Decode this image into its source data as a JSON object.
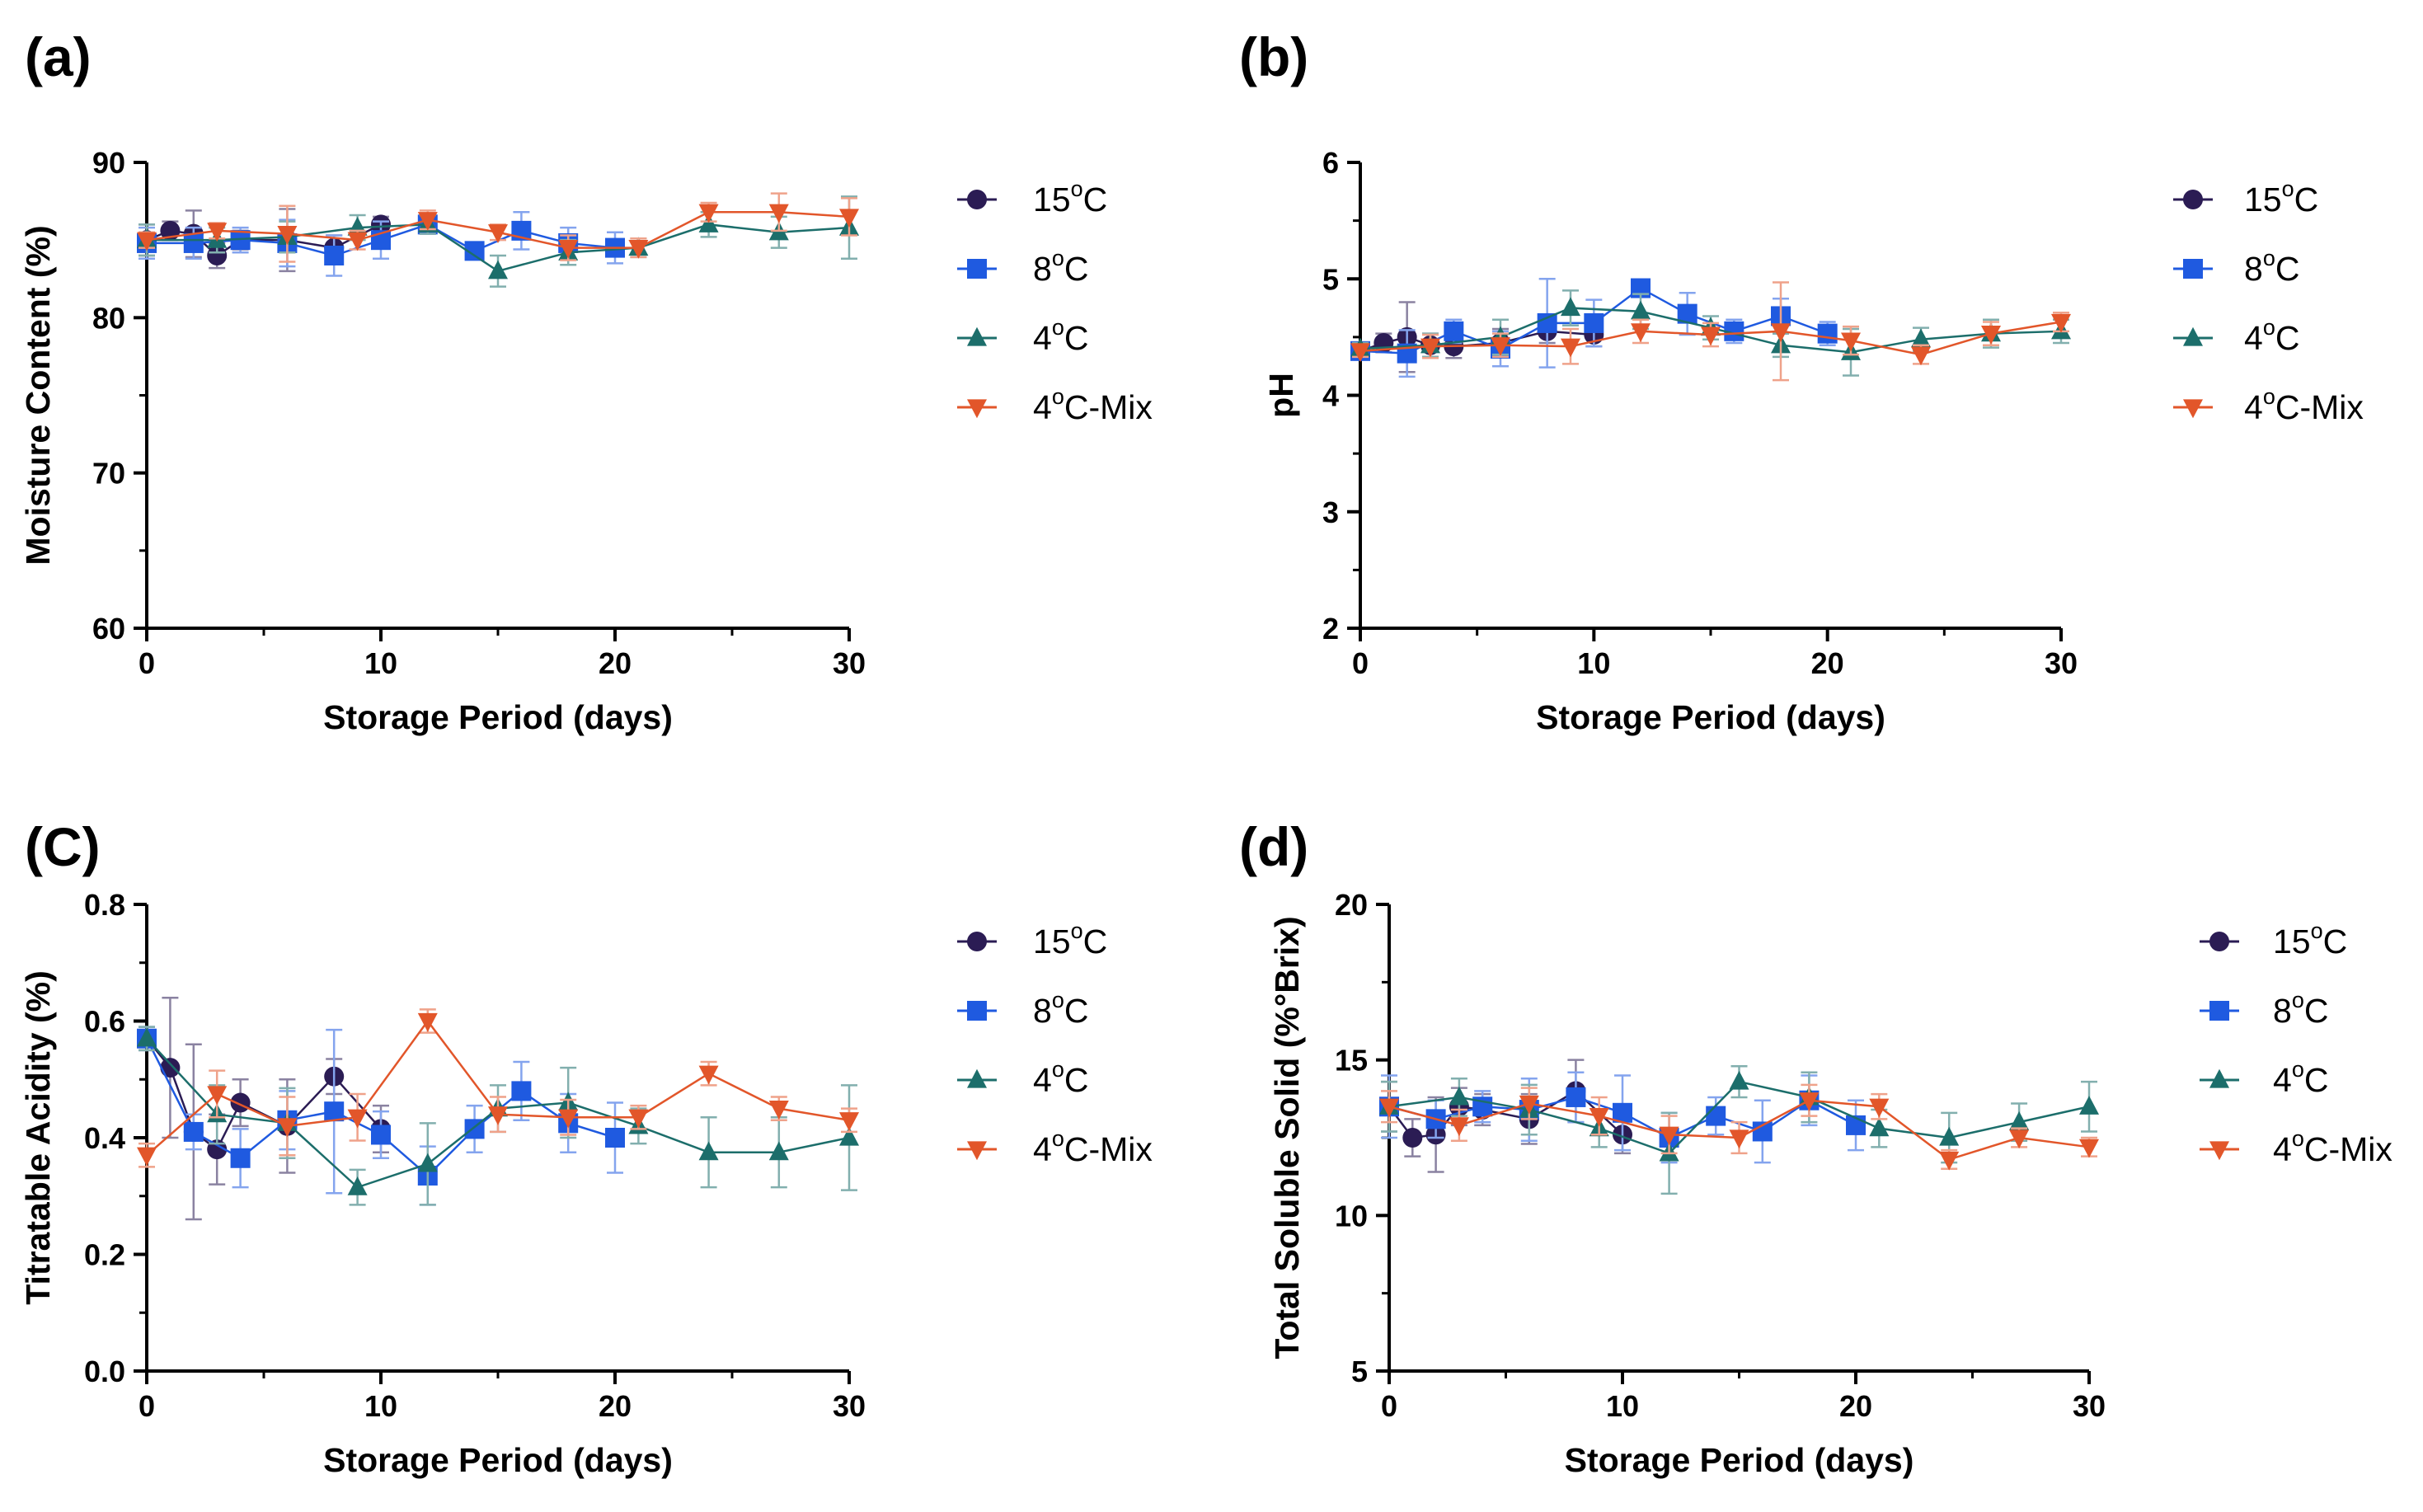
{
  "chart_data": [
    {
      "type": "line",
      "panel_label": "(a)",
      "xlabel": "Storage Period (days)",
      "ylabel": "Moisture Content (%)",
      "xlim": [
        0,
        30
      ],
      "ylim": [
        60,
        90
      ],
      "xticks": [
        "0",
        "10",
        "20",
        "30"
      ],
      "yticks": [
        "60",
        "70",
        "80",
        "90"
      ],
      "series": [
        {
          "name": "15°C",
          "label": "15",
          "suffix": "C",
          "sup": "o",
          "color": "#2b1c54",
          "marker": "circle",
          "x": [
            0,
            1,
            2,
            3,
            4,
            6,
            8,
            10
          ],
          "y": [
            85.0,
            85.6,
            85.4,
            84.0,
            85.0,
            85.0,
            84.5,
            86.0
          ],
          "err": [
            1.0,
            0.6,
            1.5,
            0.8,
            0.6,
            2.0,
            0.8,
            0.5
          ]
        },
        {
          "name": "8°C",
          "label": "8",
          "suffix": "C",
          "sup": "o",
          "color": "#1f5ae0",
          "marker": "square",
          "x": [
            0,
            2,
            4,
            6,
            8,
            10,
            12,
            14,
            16,
            18,
            20
          ],
          "y": [
            84.8,
            84.8,
            85.0,
            84.8,
            84.0,
            85.0,
            86.0,
            84.3,
            85.6,
            84.8,
            84.5
          ],
          "err": [
            1.0,
            1.0,
            0.8,
            1.5,
            1.3,
            1.2,
            0.6,
            0.5,
            1.2,
            1.0,
            1.0
          ]
        },
        {
          "name": "4°C",
          "label": "4",
          "suffix": "C",
          "sup": "o",
          "color": "#1c6e6b",
          "marker": "triangle",
          "x": [
            0,
            3,
            6,
            9,
            12,
            15,
            18,
            21,
            24,
            27,
            30
          ],
          "y": [
            85.0,
            85.0,
            85.2,
            85.8,
            86.0,
            83.0,
            84.2,
            84.5,
            86.0,
            85.5,
            85.8
          ],
          "err": [
            1.0,
            0.8,
            1.0,
            0.8,
            0.6,
            1.0,
            0.8,
            0.6,
            0.8,
            1.0,
            2.0
          ]
        },
        {
          "name": "4°C-Mix",
          "label": "4",
          "suffix": "C-Mix",
          "sup": "o",
          "color": "#e2562a",
          "marker": "triangle-down",
          "x": [
            0,
            3,
            6,
            9,
            12,
            15,
            18,
            21,
            24,
            27,
            30
          ],
          "y": [
            85.0,
            85.6,
            85.4,
            85.0,
            86.3,
            85.5,
            84.5,
            84.5,
            86.8,
            86.8,
            86.5
          ],
          "err": [
            0.5,
            0.5,
            1.8,
            0.6,
            0.6,
            0.5,
            0.8,
            0.6,
            0.6,
            1.2,
            1.2
          ]
        }
      ]
    },
    {
      "type": "line",
      "panel_label": "(b)",
      "xlabel": "Storage Period (days)",
      "ylabel": "pH",
      "xlim": [
        0,
        30
      ],
      "ylim": [
        2,
        6
      ],
      "xticks": [
        "0",
        "10",
        "20",
        "30"
      ],
      "yticks": [
        "2",
        "3",
        "4",
        "5",
        "6"
      ],
      "series": [
        {
          "name": "15°C",
          "label": "15",
          "suffix": "C",
          "sup": "o",
          "color": "#2b1c54",
          "marker": "circle",
          "x": [
            0,
            1,
            2,
            3,
            4,
            6,
            8,
            10
          ],
          "y": [
            4.38,
            4.45,
            4.5,
            4.43,
            4.42,
            4.45,
            4.55,
            4.52
          ],
          "err": [
            0.05,
            0.08,
            0.3,
            0.1,
            0.1,
            0.12,
            0.1,
            0.1
          ]
        },
        {
          "name": "8°C",
          "label": "8",
          "suffix": "C",
          "sup": "o",
          "color": "#1f5ae0",
          "marker": "square",
          "x": [
            0,
            2,
            4,
            6,
            8,
            10,
            12,
            14,
            16,
            18,
            20
          ],
          "y": [
            4.38,
            4.36,
            4.55,
            4.4,
            4.62,
            4.62,
            4.92,
            4.7,
            4.55,
            4.68,
            4.53
          ],
          "err": [
            0.05,
            0.2,
            0.1,
            0.15,
            0.38,
            0.2,
            0.05,
            0.18,
            0.1,
            0.15,
            0.1
          ]
        },
        {
          "name": "4°C",
          "label": "4",
          "suffix": "C",
          "sup": "o",
          "color": "#1c6e6b",
          "marker": "triangle",
          "x": [
            0,
            3,
            6,
            9,
            12,
            15,
            18,
            21,
            24,
            27,
            30
          ],
          "y": [
            4.4,
            4.43,
            4.5,
            4.75,
            4.72,
            4.58,
            4.43,
            4.37,
            4.48,
            4.53,
            4.55
          ],
          "err": [
            0.05,
            0.1,
            0.15,
            0.15,
            0.15,
            0.1,
            0.1,
            0.2,
            0.1,
            0.12,
            0.1
          ]
        },
        {
          "name": "4°C-Mix",
          "label": "4",
          "suffix": "C-Mix",
          "sup": "o",
          "color": "#e2562a",
          "marker": "triangle-down",
          "x": [
            0,
            3,
            6,
            9,
            12,
            15,
            18,
            21,
            24,
            27,
            30
          ],
          "y": [
            4.38,
            4.42,
            4.43,
            4.42,
            4.55,
            4.52,
            4.55,
            4.47,
            4.35,
            4.53,
            4.63
          ],
          "err": [
            0.05,
            0.1,
            0.1,
            0.15,
            0.1,
            0.1,
            0.42,
            0.12,
            0.08,
            0.1,
            0.08
          ]
        }
      ]
    },
    {
      "type": "line",
      "panel_label": "(C)",
      "xlabel": "Storage Period (days)",
      "ylabel": "Titratable Acidity (%)",
      "xlim": [
        0,
        30
      ],
      "ylim": [
        0.0,
        0.8
      ],
      "xticks": [
        "0",
        "10",
        "20",
        "30"
      ],
      "yticks": [
        "0.0",
        "0.2",
        "0.4",
        "0.6",
        "0.8"
      ],
      "series": [
        {
          "name": "15°C",
          "label": "15",
          "suffix": "C",
          "sup": "o",
          "color": "#2b1c54",
          "marker": "circle",
          "x": [
            0,
            1,
            2,
            3,
            4,
            6,
            8,
            10
          ],
          "y": [
            0.57,
            0.52,
            0.41,
            0.38,
            0.46,
            0.42,
            0.505,
            0.415
          ],
          "err": [
            0.02,
            0.12,
            0.15,
            0.06,
            0.04,
            0.08,
            0.03,
            0.04
          ]
        },
        {
          "name": "8°C",
          "label": "8",
          "suffix": "C",
          "sup": "o",
          "color": "#1f5ae0",
          "marker": "square",
          "x": [
            0,
            2,
            4,
            6,
            8,
            10,
            12,
            14,
            16,
            18,
            20
          ],
          "y": [
            0.57,
            0.41,
            0.365,
            0.43,
            0.445,
            0.405,
            0.335,
            0.415,
            0.48,
            0.425,
            0.4
          ],
          "err": [
            0.02,
            0.03,
            0.05,
            0.05,
            0.14,
            0.04,
            0.05,
            0.04,
            0.05,
            0.05,
            0.06
          ]
        },
        {
          "name": "4°C",
          "label": "4",
          "suffix": "C",
          "sup": "o",
          "color": "#1c6e6b",
          "marker": "triangle",
          "x": [
            0,
            3,
            6,
            9,
            12,
            15,
            18,
            21,
            24,
            27,
            30
          ],
          "y": [
            0.57,
            0.44,
            0.425,
            0.315,
            0.355,
            0.45,
            0.46,
            0.42,
            0.375,
            0.375,
            0.4
          ],
          "err": [
            0.02,
            0.05,
            0.06,
            0.03,
            0.07,
            0.04,
            0.06,
            0.03,
            0.06,
            0.06,
            0.09
          ]
        },
        {
          "name": "4°C-Mix",
          "label": "4",
          "suffix": "C-Mix",
          "sup": "o",
          "color": "#e2562a",
          "marker": "triangle-down",
          "x": [
            0,
            3,
            6,
            9,
            12,
            15,
            18,
            21,
            24,
            27,
            30
          ],
          "y": [
            0.37,
            0.475,
            0.42,
            0.435,
            0.6,
            0.44,
            0.435,
            0.435,
            0.51,
            0.45,
            0.43
          ],
          "err": [
            0.02,
            0.04,
            0.05,
            0.04,
            0.02,
            0.03,
            0.03,
            0.02,
            0.02,
            0.02,
            0.02
          ]
        }
      ]
    },
    {
      "type": "line",
      "panel_label": "(d)",
      "xlabel": "Storage Period (days)",
      "ylabel": "Total Soluble Solid (%°Brix)",
      "xlim": [
        0,
        30
      ],
      "ylim": [
        5,
        20
      ],
      "xticks": [
        "0",
        "10",
        "20",
        "30"
      ],
      "yticks": [
        "5",
        "10",
        "15",
        "20"
      ],
      "series": [
        {
          "name": "15°C",
          "label": "15",
          "suffix": "C",
          "sup": "o",
          "color": "#2b1c54",
          "marker": "circle",
          "x": [
            0,
            1,
            2,
            3,
            4,
            6,
            8,
            10
          ],
          "y": [
            13.5,
            12.5,
            12.6,
            13.5,
            13.4,
            13.1,
            14.0,
            12.6
          ],
          "err": [
            0.8,
            0.6,
            1.2,
            0.6,
            0.5,
            0.8,
            1.0,
            0.6
          ]
        },
        {
          "name": "8°C",
          "label": "8",
          "suffix": "C",
          "sup": "o",
          "color": "#1f5ae0",
          "marker": "square",
          "x": [
            0,
            2,
            4,
            6,
            8,
            10,
            12,
            14,
            16,
            18,
            20
          ],
          "y": [
            13.5,
            13.1,
            13.5,
            13.4,
            13.8,
            13.3,
            12.5,
            13.2,
            12.7,
            13.7,
            12.9
          ],
          "err": [
            1.0,
            0.6,
            0.5,
            1.0,
            0.8,
            1.2,
            0.8,
            0.6,
            1.0,
            0.8,
            0.8
          ]
        },
        {
          "name": "4°C",
          "label": "4",
          "suffix": "C",
          "sup": "o",
          "color": "#1c6e6b",
          "marker": "triangle",
          "x": [
            0,
            3,
            6,
            9,
            12,
            15,
            18,
            21,
            24,
            27,
            30
          ],
          "y": [
            13.5,
            13.8,
            13.4,
            12.8,
            12.0,
            14.3,
            13.8,
            12.8,
            12.5,
            13.0,
            13.5
          ],
          "err": [
            0.8,
            0.6,
            0.8,
            0.6,
            1.3,
            0.5,
            0.8,
            0.6,
            0.8,
            0.6,
            0.8
          ]
        },
        {
          "name": "4°C-Mix",
          "label": "4",
          "suffix": "C-Mix",
          "sup": "o",
          "color": "#e2562a",
          "marker": "triangle-down",
          "x": [
            0,
            3,
            6,
            9,
            12,
            15,
            18,
            21,
            24,
            27,
            30
          ],
          "y": [
            13.5,
            12.9,
            13.6,
            13.2,
            12.6,
            12.5,
            13.7,
            13.5,
            11.8,
            12.5,
            12.2
          ],
          "err": [
            0.5,
            0.5,
            0.5,
            0.6,
            0.6,
            0.5,
            0.5,
            0.4,
            0.3,
            0.3,
            0.3
          ]
        }
      ]
    }
  ]
}
